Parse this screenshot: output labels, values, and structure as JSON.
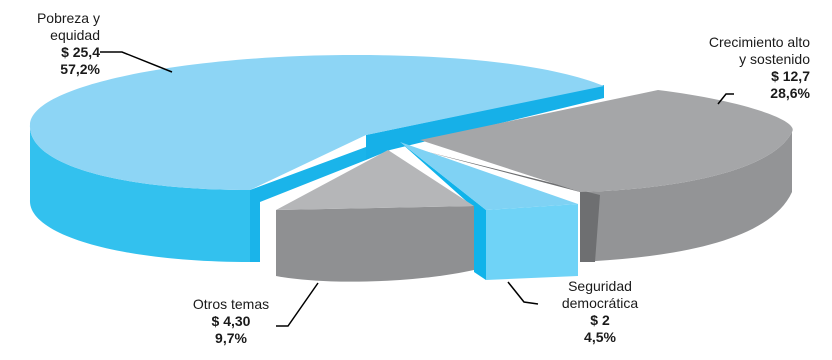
{
  "chart_data": {
    "type": "pie",
    "title": "",
    "style": "3d-exploded",
    "slices": [
      {
        "name": "Pobreza y equidad",
        "name_lines": [
          "Pobreza y",
          "equidad"
        ],
        "value_label": "$ 25,4",
        "value": 25.4,
        "percent_label": "57,2%",
        "percent": 57.2,
        "color": "#8dd5f5"
      },
      {
        "name": "Crecimiento alto y sostenido",
        "name_lines": [
          "Crecimiento alto",
          "y sostenido"
        ],
        "value_label": "$ 12,7",
        "value": 12.7,
        "percent_label": "28,6%",
        "percent": 28.6,
        "color": "#a5a6a8"
      },
      {
        "name": "Seguridad democrática",
        "name_lines": [
          "Seguridad",
          "democrática"
        ],
        "value_label": "$ 2",
        "value": 2,
        "percent_label": "4,5%",
        "percent": 4.5,
        "color": "#7fd2f4"
      },
      {
        "name": "Otros temas",
        "name_lines": [
          "Otros temas"
        ],
        "value_label": "$ 4,30",
        "value": 4.3,
        "percent_label": "9,7%",
        "percent": 9.7,
        "color": "#b5b6b8"
      }
    ]
  }
}
